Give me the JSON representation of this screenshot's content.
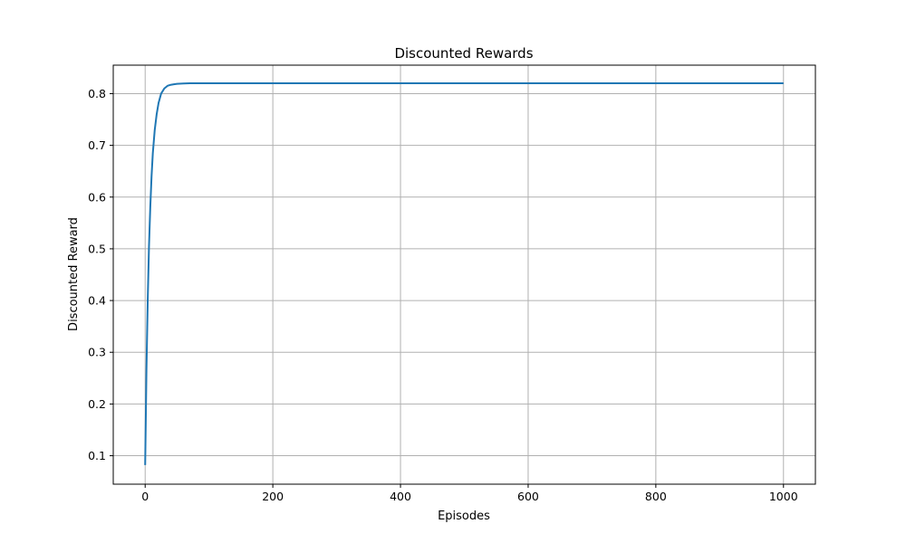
{
  "chart_data": {
    "type": "line",
    "title": "Discounted Rewards",
    "xlabel": "Episodes",
    "ylabel": "Discounted Reward",
    "xlim": [
      -50,
      1050
    ],
    "ylim": [
      0.045,
      0.855
    ],
    "xticks": [
      0,
      200,
      400,
      600,
      800,
      1000
    ],
    "yticks": [
      0.1,
      0.2,
      0.3,
      0.4,
      0.5,
      0.6,
      0.7,
      0.8
    ],
    "xtick_labels": [
      "0",
      "200",
      "400",
      "600",
      "800",
      "1000"
    ],
    "ytick_labels": [
      "0.1",
      "0.2",
      "0.3",
      "0.4",
      "0.5",
      "0.6",
      "0.7",
      "0.8"
    ],
    "grid": true,
    "series": [
      {
        "color": "#1f77b4",
        "x": [
          0,
          2,
          4,
          6,
          8,
          10,
          12,
          15,
          18,
          21,
          25,
          30,
          35,
          40,
          45,
          50,
          60,
          70,
          80,
          100,
          150,
          200,
          300,
          400,
          500,
          600,
          700,
          800,
          900,
          1000
        ],
        "y": [
          0.082,
          0.265,
          0.4,
          0.505,
          0.58,
          0.64,
          0.685,
          0.73,
          0.76,
          0.782,
          0.8,
          0.81,
          0.815,
          0.817,
          0.818,
          0.819,
          0.8195,
          0.82,
          0.82,
          0.82,
          0.82,
          0.82,
          0.82,
          0.82,
          0.82,
          0.82,
          0.82,
          0.82,
          0.82,
          0.82
        ]
      }
    ]
  }
}
